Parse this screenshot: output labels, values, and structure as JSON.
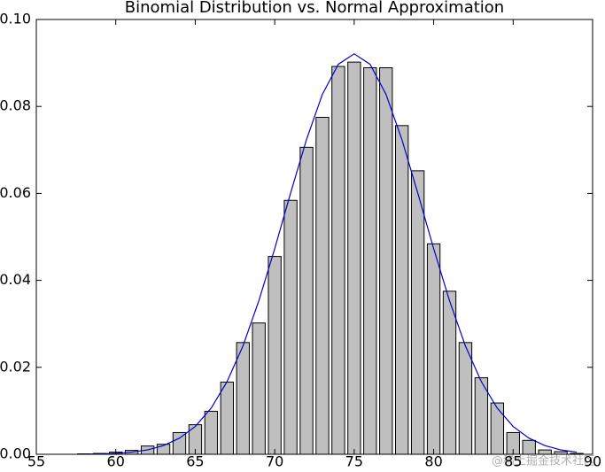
{
  "chart_data": {
    "type": "bar",
    "title": "Binomial Distribution vs. Normal Approximation",
    "x": [
      58,
      59,
      60,
      61,
      62,
      63,
      64,
      65,
      66,
      67,
      68,
      69,
      70,
      71,
      72,
      73,
      74,
      75,
      76,
      77,
      78,
      79,
      80,
      81,
      82,
      83,
      84,
      85,
      86,
      87,
      88,
      89
    ],
    "values": [
      0.0001,
      0.0002,
      0.0005,
      0.0009,
      0.0019,
      0.0023,
      0.005,
      0.0068,
      0.0099,
      0.0166,
      0.0257,
      0.0302,
      0.0455,
      0.0584,
      0.0706,
      0.0775,
      0.0892,
      0.0902,
      0.0889,
      0.0889,
      0.0756,
      0.0652,
      0.0484,
      0.0375,
      0.0257,
      0.0176,
      0.0118,
      0.005,
      0.0032,
      0.001,
      0.0006,
      0.0002
    ],
    "color": "#bfbfbf",
    "overlay": {
      "type": "line",
      "color": "#0000cc",
      "x": [
        58,
        59,
        60,
        61,
        62,
        63,
        64,
        65,
        66,
        67,
        68,
        69,
        70,
        71,
        72,
        73,
        74,
        75,
        76,
        77,
        78,
        79,
        80,
        81,
        82,
        83,
        84,
        85,
        86,
        87,
        88,
        89
      ],
      "values": [
        4e-05,
        0.0001,
        0.0002,
        0.0005,
        0.001,
        0.002,
        0.0037,
        0.0064,
        0.0106,
        0.0167,
        0.0249,
        0.0353,
        0.0473,
        0.0601,
        0.0724,
        0.0828,
        0.0897,
        0.0921,
        0.0897,
        0.0828,
        0.0724,
        0.0601,
        0.0473,
        0.0353,
        0.0249,
        0.0167,
        0.0106,
        0.0064,
        0.0037,
        0.002,
        0.001,
        0.0005
      ]
    },
    "xlim": [
      55,
      90
    ],
    "xticks": [
      55,
      60,
      65,
      70,
      75,
      80,
      85,
      90
    ],
    "ylim": [
      0,
      0.1
    ],
    "yticks": [
      {
        "value": 0,
        "label": "0.00"
      },
      {
        "value": 0.02,
        "label": "0.02"
      },
      {
        "value": 0.04,
        "label": "0.04"
      },
      {
        "value": 0.06,
        "label": "0.06"
      },
      {
        "value": 0.08,
        "label": "0.08"
      },
      {
        "value": 0.1,
        "label": "0.10"
      }
    ],
    "watermark": "@稀土掘金技术社区"
  }
}
